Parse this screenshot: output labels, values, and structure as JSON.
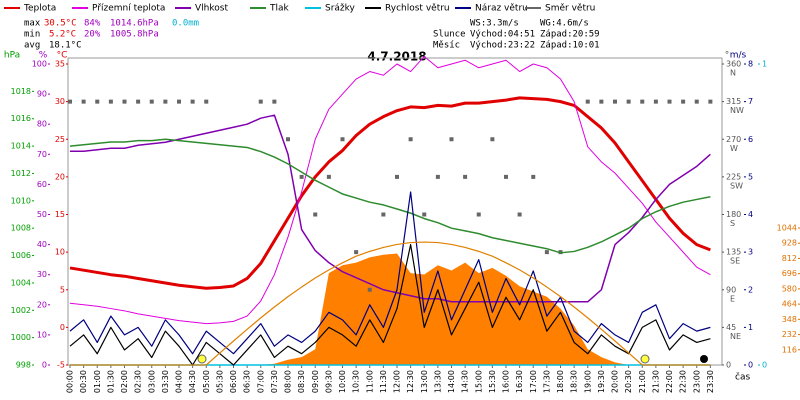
{
  "chart_data": {
    "type": "line",
    "title": "4.7.2018",
    "x_label": "čas",
    "stats": {
      "max": [
        "max",
        "30.5°C",
        "84%",
        "1014.6hPa",
        "0.0mm"
      ],
      "min": [
        "min",
        "5.2°C",
        "20%",
        "1005.8hPa"
      ],
      "avg": [
        "avg",
        "18.1°C"
      ],
      "wind": [
        "WS:3.3m/s",
        "WG:4.6m/s"
      ],
      "sun": [
        "Slunce",
        "Východ:04:51",
        "Západ:20:59"
      ],
      "moon": [
        "Měsíc",
        "Východ:23:22",
        "Západ:10:01"
      ]
    },
    "categories": [
      "00:00",
      "00:30",
      "01:00",
      "01:30",
      "02:00",
      "02:30",
      "03:00",
      "03:30",
      "04:00",
      "04:30",
      "05:00",
      "05:30",
      "06:00",
      "06:30",
      "07:00",
      "07:30",
      "08:00",
      "08:30",
      "09:00",
      "09:30",
      "10:00",
      "10:30",
      "11:00",
      "11:30",
      "12:00",
      "12:30",
      "13:00",
      "13:30",
      "14:00",
      "14:30",
      "15:00",
      "15:30",
      "16:00",
      "16:30",
      "17:00",
      "17:30",
      "18:00",
      "18:30",
      "19:00",
      "19:30",
      "20:00",
      "20:30",
      "21:00",
      "21:30",
      "22:00",
      "22:30",
      "23:00",
      "23:30"
    ],
    "axes": [
      {
        "label": "hPa",
        "color": "#00a000",
        "ylim": [
          998,
          1020
        ],
        "yticks": [
          998,
          1000,
          1002,
          1004,
          1006,
          1008,
          1010,
          1012,
          1014,
          1016,
          1018
        ]
      },
      {
        "label": "%",
        "color": "#a000c0",
        "ylim": [
          0,
          100
        ],
        "yticks": [
          0,
          10,
          20,
          30,
          40,
          50,
          60,
          70,
          80,
          90,
          100
        ]
      },
      {
        "label": "°C",
        "color": "#e00000",
        "ylim": [
          -5,
          35
        ],
        "yticks": [
          -5,
          0,
          5,
          10,
          15,
          20,
          25,
          30,
          35
        ]
      },
      {
        "label": "°",
        "color": "#555555",
        "ylim": [
          0,
          360
        ],
        "yticks": [
          0,
          45,
          90,
          135,
          180,
          225,
          270,
          315,
          360
        ],
        "compass": [
          "NE",
          "E",
          "SE",
          "S",
          "SW",
          "W",
          "NW",
          "N"
        ]
      },
      {
        "label": "m/s",
        "color": "#000080",
        "ylim": [
          0,
          8
        ],
        "yticks": [
          0,
          1,
          2,
          3,
          4,
          5,
          6,
          7,
          8
        ]
      },
      {
        "color": "#00b0d0",
        "ylim": [
          0,
          1
        ],
        "yticks": [
          0,
          1
        ]
      },
      {
        "color": "#e07000",
        "ylim": [
          0,
          2294
        ],
        "yticks": [
          116,
          232,
          348,
          464,
          580,
          696,
          812,
          928,
          1044
        ]
      }
    ],
    "series": [
      {
        "name": "Teplota",
        "color": "#e00000",
        "style": "line",
        "width": 3,
        "axis": 2,
        "values": [
          7.9,
          7.6,
          7.3,
          7.0,
          6.8,
          6.5,
          6.2,
          5.9,
          5.6,
          5.4,
          5.2,
          5.3,
          5.5,
          6.5,
          8.5,
          11.5,
          14.5,
          17.5,
          20,
          22,
          23.5,
          25.5,
          27,
          28,
          28.8,
          29.3,
          29.2,
          29.5,
          29.4,
          29.8,
          29.8,
          30,
          30.2,
          30.5,
          30.4,
          30.3,
          30,
          29.5,
          28,
          26.5,
          24.5,
          22,
          19.5,
          17,
          14.5,
          12.5,
          11,
          10.3
        ]
      },
      {
        "name": "Přízemní teplota",
        "color": "#e000e0",
        "style": "line",
        "width": 1,
        "axis": 2,
        "values": [
          3.2,
          3,
          2.8,
          2.5,
          2.2,
          1.8,
          1.5,
          1.2,
          0.9,
          0.7,
          0.5,
          0.6,
          0.8,
          1.5,
          3.5,
          7,
          12,
          18,
          25,
          29,
          31,
          33,
          34,
          33.5,
          35,
          34,
          36,
          34.5,
          35,
          35.5,
          34.5,
          35,
          35.5,
          34,
          35,
          34.5,
          33,
          30,
          24,
          22,
          20.5,
          18.5,
          16.5,
          14,
          12,
          10,
          8,
          7
        ]
      },
      {
        "name": "Vlhkost",
        "color": "#8000b0",
        "style": "line",
        "width": 1.5,
        "axis": 1,
        "values": [
          71,
          71,
          71.5,
          72,
          72,
          73,
          73.5,
          74,
          75,
          76,
          77,
          78,
          79,
          80,
          82,
          83,
          70,
          45,
          38,
          34,
          31,
          29,
          27,
          25,
          24,
          23,
          22,
          22,
          21,
          21,
          21,
          21,
          21,
          21,
          21,
          21,
          21,
          21,
          21,
          25,
          40,
          44,
          49,
          55,
          60,
          63,
          66,
          70
        ]
      },
      {
        "name": "Tlak",
        "color": "#2e8b2e",
        "style": "line",
        "width": 1.5,
        "axis": 0,
        "values": [
          1014.0,
          1014.1,
          1014.2,
          1014.3,
          1014.3,
          1014.4,
          1014.4,
          1014.5,
          1014.4,
          1014.3,
          1014.2,
          1014.1,
          1014.0,
          1013.9,
          1013.6,
          1013.2,
          1012.7,
          1012.1,
          1011.5,
          1011.0,
          1010.5,
          1010.2,
          1009.9,
          1009.7,
          1009.4,
          1009.1,
          1008.7,
          1008.4,
          1008.0,
          1007.8,
          1007.6,
          1007.3,
          1007.1,
          1006.9,
          1006.7,
          1006.5,
          1006.2,
          1006.3,
          1006.6,
          1007.0,
          1007.5,
          1008.0,
          1008.7,
          1009.2,
          1009.6,
          1009.9,
          1010.1,
          1010.3
        ]
      },
      {
        "name": "Srážky",
        "color": "#00c0e0",
        "style": "line",
        "width": 1.5,
        "axis": 5,
        "values": [
          0,
          0,
          0,
          0,
          0,
          0,
          0,
          0,
          0,
          0,
          0,
          0,
          0,
          0,
          0,
          0,
          0,
          0,
          0,
          0,
          0,
          0,
          0,
          0,
          0,
          0,
          0,
          0,
          0,
          0,
          0,
          0,
          0,
          0,
          0,
          0,
          0,
          0,
          0,
          0,
          0,
          0,
          0,
          0,
          0,
          0,
          0,
          0
        ]
      },
      {
        "name": "Rychlost větru",
        "color": "#000000",
        "style": "line",
        "width": 1.2,
        "axis": 4,
        "values": [
          0.5,
          0.8,
          0.3,
          1,
          0.4,
          0.7,
          0.2,
          0.9,
          0.5,
          0,
          0.6,
          0.3,
          0,
          0.4,
          0.8,
          0.2,
          0.5,
          0.3,
          0.6,
          1,
          0.8,
          0.5,
          1.2,
          0.6,
          1.5,
          3.2,
          1,
          2,
          0.8,
          1.5,
          2.2,
          1,
          1.8,
          1.2,
          2,
          0.9,
          1.4,
          0.6,
          0.3,
          0.8,
          0.5,
          0.3,
          1,
          1.2,
          0.4,
          0.8,
          0.6,
          0.7
        ]
      },
      {
        "name": "Náraz větru",
        "color": "#000080",
        "style": "line",
        "width": 1.2,
        "axis": 4,
        "values": [
          0.9,
          1.2,
          0.6,
          1.3,
          0.8,
          1,
          0.5,
          1.2,
          0.8,
          0.3,
          0.9,
          0.6,
          0.3,
          0.7,
          1.1,
          0.5,
          0.8,
          0.6,
          0.9,
          1.4,
          1.2,
          0.8,
          1.6,
          1,
          2,
          4.6,
          1.4,
          2.5,
          1.2,
          2,
          2.8,
          1.4,
          2.3,
          1.6,
          2.5,
          1.3,
          1.8,
          0.9,
          0.6,
          1.1,
          0.8,
          0.6,
          1.4,
          1.6,
          0.7,
          1.1,
          0.9,
          1
        ]
      },
      {
        "name": "Směr větru",
        "color": "#666666",
        "style": "dots",
        "axis": 3,
        "values": [
          315,
          315,
          315,
          315,
          315,
          315,
          315,
          315,
          315,
          315,
          315,
          null,
          null,
          null,
          315,
          315,
          270,
          225,
          180,
          225,
          270,
          135,
          90,
          180,
          225,
          270,
          180,
          225,
          270,
          225,
          180,
          270,
          225,
          180,
          225,
          135,
          135,
          null,
          315,
          315,
          315,
          315,
          315,
          315,
          315,
          315,
          315,
          315
        ]
      },
      {
        "color": "#ff7f00",
        "style": "area",
        "axis": 6,
        "values": [
          0,
          0,
          0,
          0,
          0,
          0,
          0,
          0,
          0,
          0,
          0,
          0,
          0,
          0,
          0,
          10,
          40,
          60,
          120,
          700,
          760,
          780,
          820,
          840,
          850,
          700,
          690,
          760,
          720,
          780,
          700,
          740,
          680,
          600,
          560,
          520,
          430,
          300,
          120,
          60,
          20,
          0,
          0,
          0,
          0,
          0,
          0,
          0
        ]
      },
      {
        "color": "#e08000",
        "style": "line",
        "width": 1.2,
        "axis": 6,
        "values": [
          0,
          0,
          0,
          0,
          0,
          0,
          0,
          0,
          0,
          0,
          0,
          92,
          183,
          272,
          359,
          442,
          521,
          594,
          663,
          725,
          779,
          829,
          866,
          896,
          919,
          933,
          937,
          933,
          919,
          896,
          866,
          829,
          779,
          725,
          663,
          594,
          521,
          442,
          359,
          272,
          183,
          92,
          0,
          0,
          0,
          0,
          0,
          0
        ]
      }
    ]
  }
}
